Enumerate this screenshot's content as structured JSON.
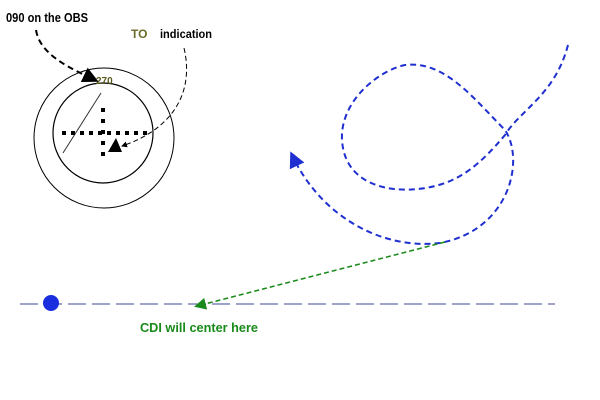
{
  "labels": {
    "obs": "090 on the OBS",
    "to_word": "TO",
    "indication": "indication",
    "bearing": "270",
    "cdi_note": "CDI will center here"
  },
  "colors": {
    "track": "#1f2fd0",
    "cdi_arrow": "#1a8a1a",
    "to_text": "#6b6b2a",
    "radial_line": "#3a4a9a",
    "station_dot": "#1a2ee0"
  }
}
